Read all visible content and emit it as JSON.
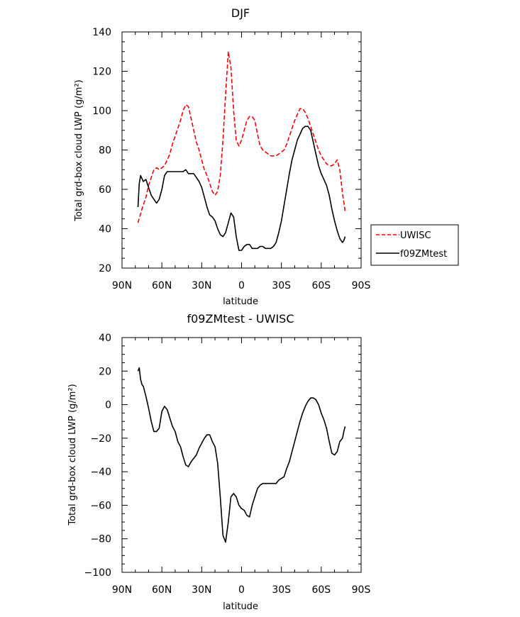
{
  "chart_data": [
    {
      "type": "line",
      "title": "DJF",
      "xlabel": "latitude",
      "ylabel": "Total grd-box cloud LWP (g/m²)",
      "xlim": [
        90,
        -90
      ],
      "ylim": [
        20,
        140
      ],
      "xticks": [
        90,
        60,
        30,
        0,
        -30,
        -60,
        -90
      ],
      "xtick_labels": [
        "90N",
        "60N",
        "30N",
        "0",
        "30S",
        "60S",
        "90S"
      ],
      "yticks": [
        20,
        40,
        60,
        80,
        100,
        120,
        140
      ],
      "ytick_labels": [
        "20",
        "40",
        "60",
        "80",
        "100",
        "120",
        "140"
      ],
      "legend": {
        "placement": "right-outside"
      },
      "series": [
        {
          "name": "UWISC",
          "style": "dashed",
          "color": "#ff0000",
          "x": [
            78,
            75,
            72,
            70,
            68,
            66,
            64,
            62,
            60,
            58,
            56,
            54,
            52,
            50,
            48,
            46,
            44,
            42,
            40,
            38,
            36,
            34,
            32,
            30,
            28,
            26,
            24,
            22,
            20,
            18,
            16,
            14,
            12,
            10,
            8,
            6,
            4,
            2,
            0,
            -2,
            -4,
            -6,
            -8,
            -10,
            -12,
            -14,
            -16,
            -18,
            -20,
            -22,
            -24,
            -26,
            -28,
            -30,
            -32,
            -34,
            -36,
            -38,
            -40,
            -42,
            -44,
            -46,
            -48,
            -50,
            -52,
            -54,
            -56,
            -58,
            -60,
            -62,
            -64,
            -66,
            -68,
            -70,
            -72,
            -74,
            -76,
            -78
          ],
          "y": [
            43,
            50,
            56,
            62,
            66,
            70,
            71,
            70,
            71,
            72,
            75,
            78,
            83,
            87,
            91,
            95,
            100,
            103,
            102,
            96,
            90,
            84,
            80,
            75,
            70,
            67,
            63,
            59,
            57,
            59,
            67,
            85,
            108,
            130,
            122,
            100,
            85,
            82,
            85,
            90,
            95,
            97,
            97,
            95,
            88,
            82,
            80,
            79,
            78,
            77,
            77,
            77,
            78,
            79,
            80,
            83,
            87,
            91,
            95,
            98,
            101,
            101,
            99,
            96,
            92,
            88,
            84,
            80,
            77,
            75,
            73,
            72,
            72,
            73,
            75,
            70,
            58,
            49
          ]
        },
        {
          "name": "f09ZMtest",
          "style": "solid",
          "color": "#000000",
          "x": [
            78,
            77,
            76,
            74,
            72,
            70,
            68,
            66,
            64,
            62,
            60,
            58,
            56,
            54,
            52,
            50,
            48,
            46,
            44,
            42,
            40,
            38,
            36,
            34,
            32,
            30,
            28,
            26,
            24,
            22,
            20,
            18,
            16,
            14,
            12,
            10,
            8,
            6,
            4,
            2,
            0,
            -2,
            -4,
            -6,
            -8,
            -10,
            -12,
            -14,
            -16,
            -18,
            -20,
            -22,
            -24,
            -26,
            -28,
            -30,
            -32,
            -34,
            -36,
            -38,
            -40,
            -42,
            -44,
            -46,
            -48,
            -50,
            -52,
            -54,
            -56,
            -58,
            -60,
            -62,
            -64,
            -66,
            -68,
            -70,
            -72,
            -74,
            -76,
            -77,
            -78
          ],
          "y": [
            51,
            63,
            67,
            64,
            65,
            61,
            57,
            55,
            53,
            55,
            60,
            67,
            69,
            69,
            69,
            69,
            69,
            69,
            69,
            70,
            68,
            68,
            68,
            66,
            64,
            61,
            56,
            51,
            47,
            46,
            44,
            40,
            37,
            36,
            38,
            43,
            48,
            46,
            36,
            29,
            29,
            31,
            32,
            32,
            30,
            30,
            30,
            31,
            31,
            30,
            30,
            30,
            31,
            33,
            38,
            44,
            52,
            60,
            68,
            75,
            80,
            85,
            88,
            91,
            92,
            92,
            90,
            84,
            78,
            72,
            68,
            65,
            62,
            57,
            50,
            44,
            39,
            35,
            33,
            34,
            36
          ]
        }
      ]
    },
    {
      "type": "line",
      "title": "f09ZMtest - UWISC",
      "xlabel": "latitude",
      "ylabel": "Total grd-box cloud LWP (g/m²)",
      "xlim": [
        90,
        -90
      ],
      "ylim": [
        -100,
        40
      ],
      "xticks": [
        90,
        60,
        30,
        0,
        -30,
        -60,
        -90
      ],
      "xtick_labels": [
        "90N",
        "60N",
        "30N",
        "0",
        "30S",
        "60S",
        "90S"
      ],
      "yticks": [
        -100,
        -80,
        -60,
        -40,
        -20,
        0,
        20,
        40
      ],
      "ytick_labels": [
        "−100",
        "−80",
        "−60",
        "−40",
        "−20",
        "0",
        "20",
        "40"
      ],
      "series": [
        {
          "name": "f09ZMtest - UWISC",
          "style": "solid",
          "color": "#000000",
          "x": [
            78,
            77,
            76,
            75,
            74,
            72,
            70,
            68,
            66,
            64,
            62,
            60,
            58,
            56,
            54,
            52,
            50,
            48,
            46,
            44,
            42,
            40,
            38,
            36,
            34,
            32,
            30,
            28,
            26,
            24,
            22,
            20,
            18,
            16,
            14,
            12,
            10,
            8,
            6,
            4,
            2,
            0,
            -2,
            -4,
            -6,
            -8,
            -10,
            -12,
            -14,
            -16,
            -18,
            -20,
            -22,
            -24,
            -26,
            -28,
            -30,
            -32,
            -34,
            -36,
            -38,
            -40,
            -42,
            -44,
            -46,
            -48,
            -50,
            -52,
            -54,
            -56,
            -58,
            -60,
            -62,
            -64,
            -66,
            -68,
            -70,
            -72,
            -74,
            -75,
            -76,
            -77,
            -78
          ],
          "y": [
            20,
            22,
            15,
            12,
            11,
            5,
            -2,
            -10,
            -16,
            -16,
            -14,
            -4,
            -1,
            -3,
            -8,
            -13,
            -16,
            -22,
            -25,
            -31,
            -36,
            -37,
            -34,
            -32,
            -30,
            -26,
            -23,
            -20,
            -18,
            -18,
            -22,
            -25,
            -35,
            -55,
            -78,
            -82,
            -70,
            -55,
            -53,
            -55,
            -60,
            -62,
            -63,
            -66,
            -67,
            -60,
            -55,
            -50,
            -48,
            -47,
            -47,
            -47,
            -47,
            -47,
            -47,
            -45,
            -44,
            -43,
            -38,
            -34,
            -28,
            -22,
            -16,
            -10,
            -5,
            -1,
            2,
            4,
            4,
            3,
            0,
            -5,
            -9,
            -14,
            -22,
            -29,
            -30,
            -28,
            -22,
            -21,
            -20,
            -16,
            -13
          ]
        }
      ]
    }
  ]
}
